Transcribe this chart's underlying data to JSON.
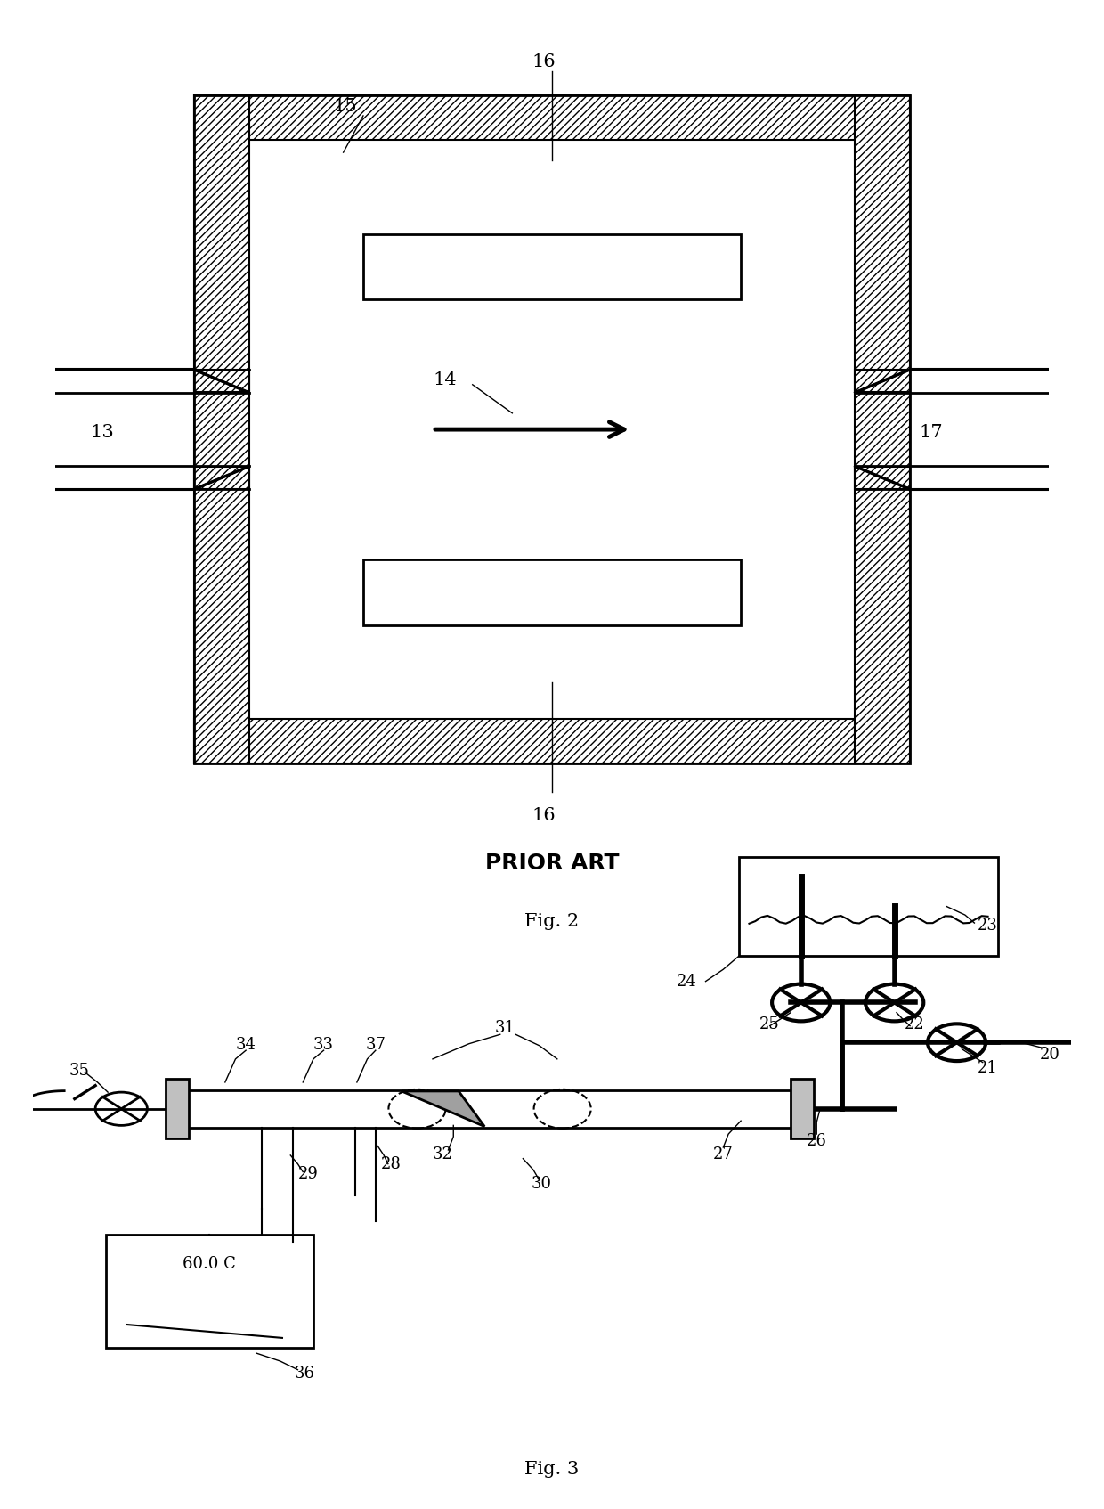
{
  "background_color": "#ffffff",
  "fig2": {
    "title": "PRIOR ART",
    "caption": "Fig. 2"
  },
  "fig3": {
    "caption": "Fig. 3"
  }
}
